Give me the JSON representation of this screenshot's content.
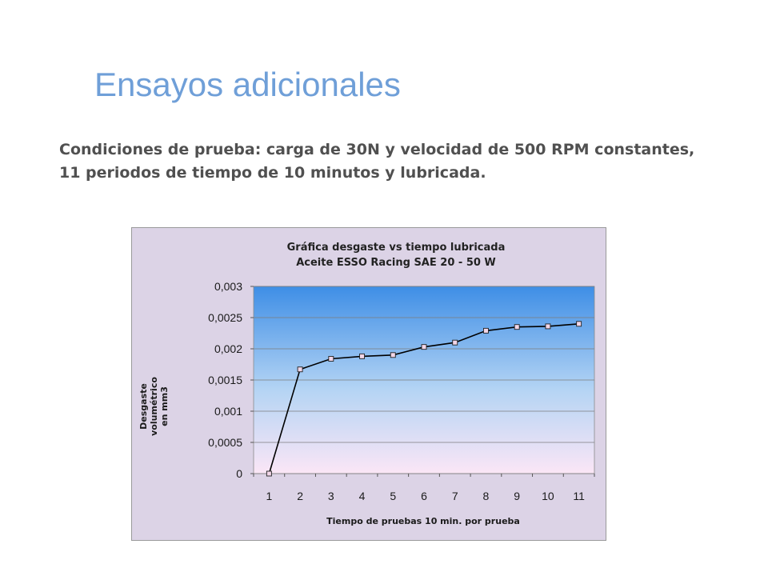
{
  "slide": {
    "title": "Ensayos adicionales",
    "description_line1": "Condiciones de prueba: carga de 30N  y velocidad de 500 RPM constantes,",
    "description_line2": "11 periodos de tiempo de 10 minutos y lubricada."
  },
  "chart_data": {
    "type": "line",
    "title_line1": "Gráfica desgaste vs tiempo lubricada",
    "title_line2": "Aceite ESSO Racing SAE 20 - 50 W",
    "xlabel": "Tiempo de pruebas 10 min. por prueba",
    "ylabel_lines": [
      "Desgaste",
      "volumétrico",
      "en mm3"
    ],
    "categories": [
      "1",
      "2",
      "3",
      "4",
      "5",
      "6",
      "7",
      "8",
      "9",
      "10",
      "11"
    ],
    "series": [
      {
        "values": [
          0,
          0.00167,
          0.00184,
          0.00188,
          0.0019,
          0.00203,
          0.0021,
          0.00229,
          0.00235,
          0.00236,
          0.0024
        ]
      }
    ],
    "ylim": [
      0,
      0.003
    ],
    "yticks": [
      {
        "value": 0,
        "label": "0"
      },
      {
        "value": 0.0005,
        "label": "0,0005"
      },
      {
        "value": 0.001,
        "label": "0,001"
      },
      {
        "value": 0.0015,
        "label": "0,0015"
      },
      {
        "value": 0.002,
        "label": "0,002"
      },
      {
        "value": 0.0025,
        "label": "0,0025"
      },
      {
        "value": 0.003,
        "label": "0,003"
      }
    ],
    "grid": true,
    "legend": "none",
    "colors": {
      "frame_background": "#dcd3e6",
      "plot_gradient_top": "#3e8ee6",
      "plot_gradient_mid": "#b4d4f4",
      "plot_gradient_bottom": "#fbe6f6",
      "line": "#000000",
      "marker_fill": "#f2d6e8"
    }
  }
}
